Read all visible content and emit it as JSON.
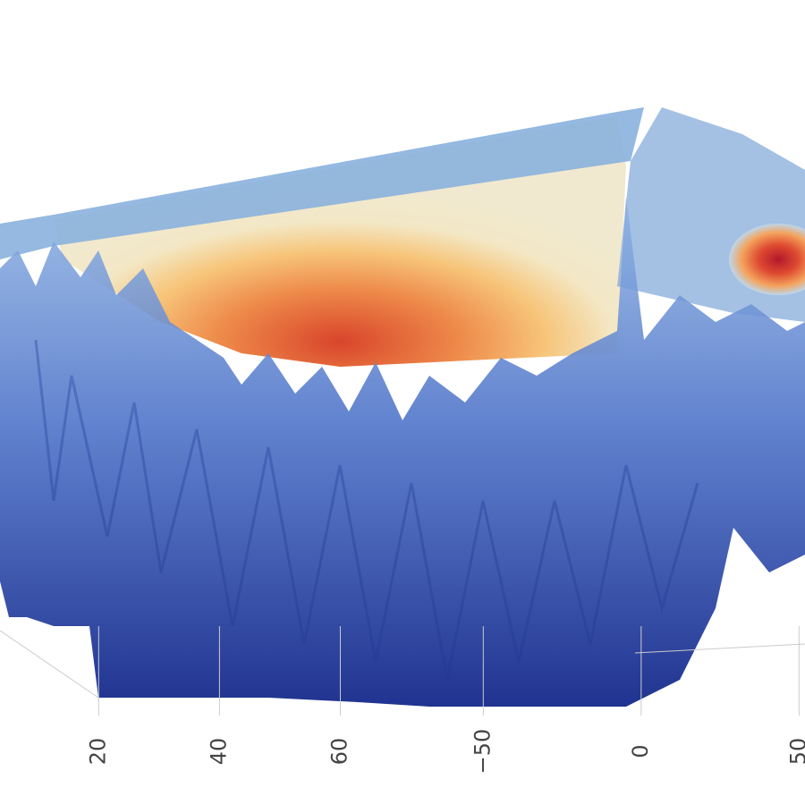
{
  "chart_data": {
    "type": "surface",
    "xticks": [
      20,
      40,
      60
    ],
    "xlim": [
      5,
      70
    ],
    "yticks": [
      {
        "value": -50,
        "label": "−50"
      },
      0,
      50
    ],
    "ylim": [
      -60,
      55
    ],
    "colors": [
      "#1a2a8c",
      "#5b8fd6",
      "#b9d5ea",
      "#f2e8c4",
      "#f6b56b",
      "#e06a3d",
      "#b2182b"
    ]
  }
}
